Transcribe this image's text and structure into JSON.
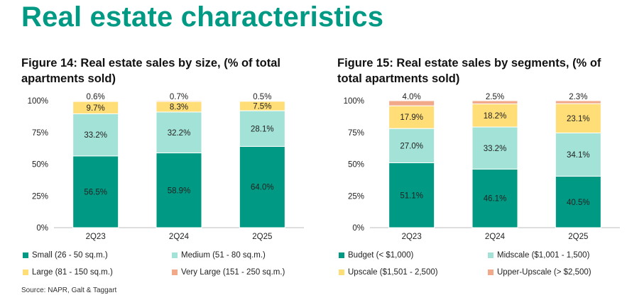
{
  "page_title": "Real estate characteristics",
  "source": "Source: NAPR, Galt & Taggart",
  "chart_data": [
    {
      "type": "bar",
      "stacked": true,
      "title": "Figure 14: Real estate sales by size, (% of total apartments sold)",
      "categories": [
        "2Q23",
        "2Q24",
        "2Q25"
      ],
      "ylim": [
        0,
        100
      ],
      "yticks": [
        "0%",
        "25%",
        "50%",
        "75%",
        "100%"
      ],
      "legend_position": "bottom",
      "series": [
        {
          "name": "Small (26 - 50 sq.m.)",
          "color": "#009a84",
          "values": [
            56.5,
            58.9,
            64.0
          ],
          "labels": [
            "56.5%",
            "58.9%",
            "64.0%"
          ]
        },
        {
          "name": "Medium (51 - 80 sq.m.)",
          "color": "#a2e2d7",
          "values": [
            33.2,
            32.2,
            28.1
          ],
          "labels": [
            "33.2%",
            "32.2%",
            "28.1%"
          ]
        },
        {
          "name": "Large (81 - 150 sq.m.)",
          "color": "#ffdd77",
          "values": [
            9.7,
            8.3,
            7.5
          ],
          "labels": [
            "9.7%",
            "8.3%",
            "7.5%"
          ]
        },
        {
          "name": "Very Large (151 - 250 sq.m.)",
          "color": "#f2a98a",
          "values": [
            0.6,
            0.7,
            0.5
          ],
          "labels": [
            "0.6%",
            "0.7%",
            "0.5%"
          ]
        }
      ]
    },
    {
      "type": "bar",
      "stacked": true,
      "title": "Figure 15: Real estate sales by segments, (% of total apartments sold)",
      "categories": [
        "2Q23",
        "2Q24",
        "2Q25"
      ],
      "ylim": [
        0,
        100
      ],
      "yticks": [
        "0%",
        "25%",
        "50%",
        "75%",
        "100%"
      ],
      "legend_position": "bottom",
      "series": [
        {
          "name": "Budget (< $1,000)",
          "color": "#009a84",
          "values": [
            51.1,
            46.1,
            40.5
          ],
          "labels": [
            "51.1%",
            "46.1%",
            "40.5%"
          ]
        },
        {
          "name": "Midscale ($1,001 - 1,500)",
          "color": "#a2e2d7",
          "values": [
            27.0,
            33.2,
            34.1
          ],
          "labels": [
            "27.0%",
            "33.2%",
            "34.1%"
          ]
        },
        {
          "name": "Upscale ($1,501 - 2,500)",
          "color": "#ffdd77",
          "values": [
            17.9,
            18.2,
            23.1
          ],
          "labels": [
            "17.9%",
            "18.2%",
            "23.1%"
          ]
        },
        {
          "name": "Upper-Upscale (> $2,500)",
          "color": "#f2a98a",
          "values": [
            4.0,
            2.5,
            2.3
          ],
          "labels": [
            "4.0%",
            "2.5%",
            "2.3%"
          ]
        }
      ]
    }
  ]
}
